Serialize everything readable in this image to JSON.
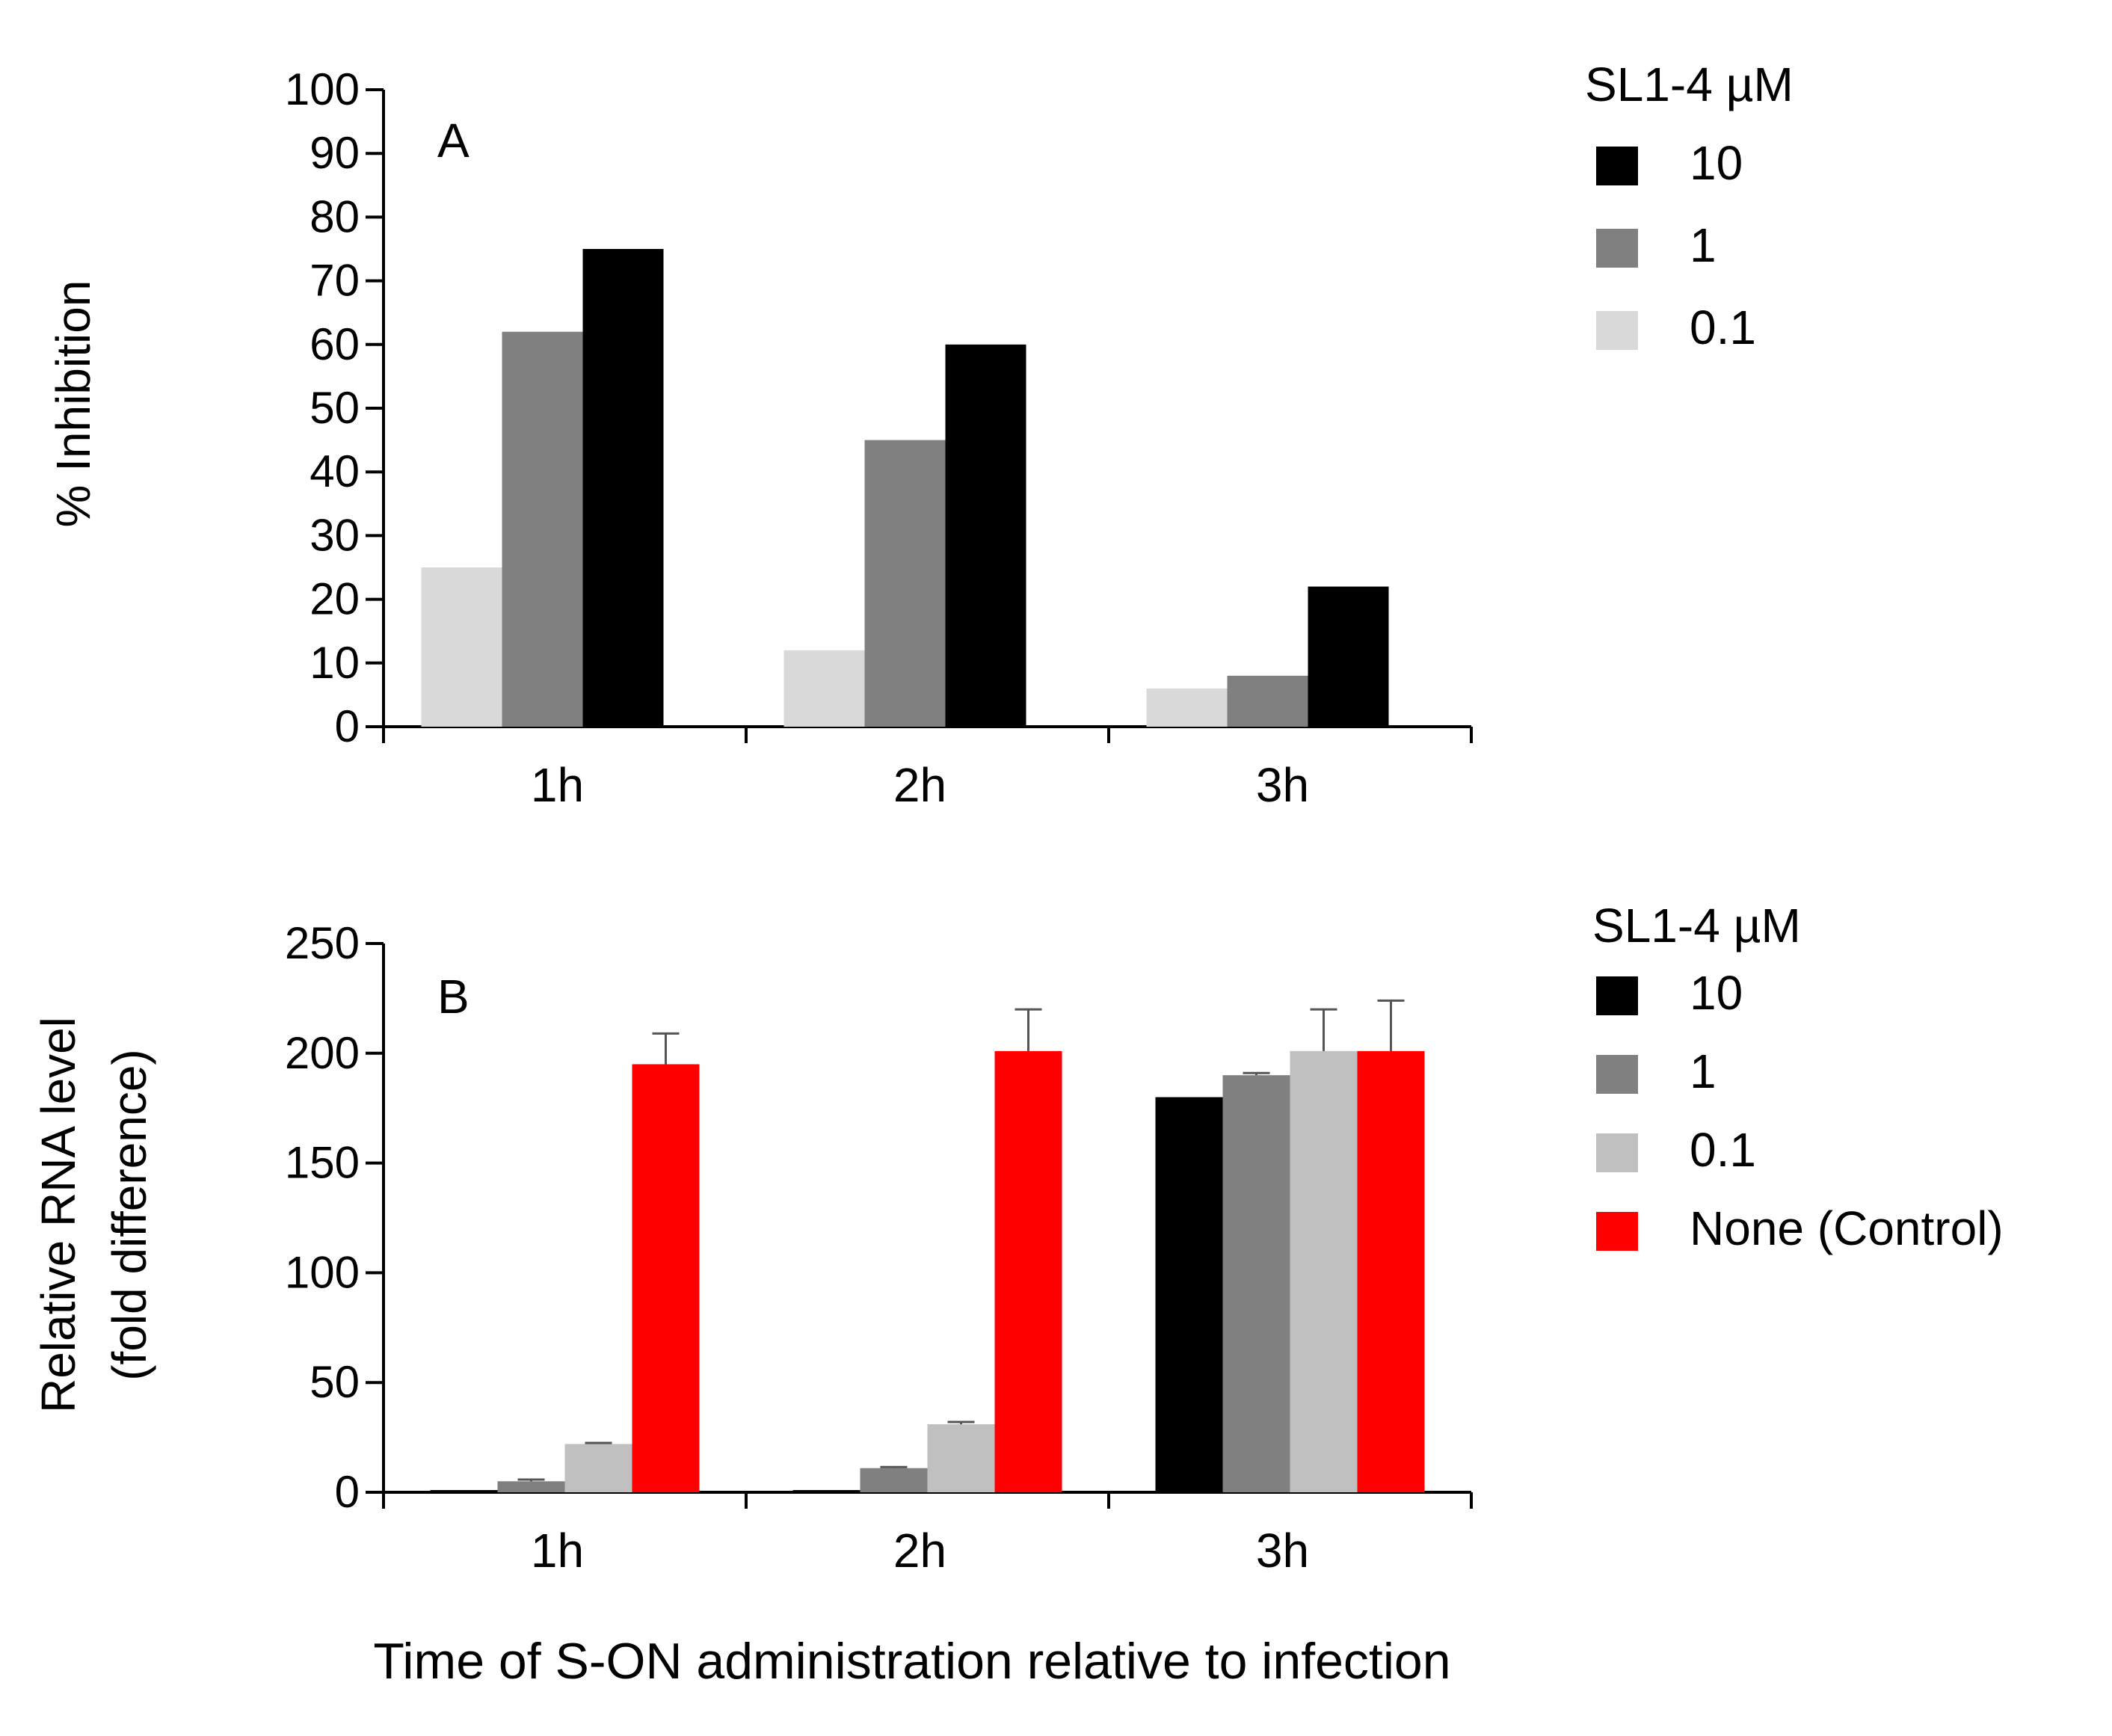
{
  "chart_data": [
    {
      "type": "bar",
      "panel": "A",
      "categories": [
        "1h",
        "2h",
        "3h"
      ],
      "series": [
        {
          "name": "0.1",
          "color": "#d9d9d9",
          "values": [
            25,
            12,
            6
          ]
        },
        {
          "name": "1",
          "color": "#808080",
          "values": [
            62,
            45,
            8
          ]
        },
        {
          "name": "10",
          "color": "#000000",
          "values": [
            75,
            60,
            22
          ]
        }
      ],
      "legend": {
        "title": "SL1-4 µM",
        "entries": [
          "10",
          "1",
          "0.1"
        ],
        "position": "right"
      },
      "ylabel": "% Inhibition",
      "ylim": [
        0,
        100
      ],
      "yticks": [
        0,
        10,
        20,
        30,
        40,
        50,
        60,
        70,
        80,
        90,
        100
      ]
    },
    {
      "type": "bar",
      "panel": "B",
      "categories": [
        "1h",
        "2h",
        "3h"
      ],
      "series": [
        {
          "name": "10",
          "color": "#000000",
          "values": [
            1,
            1,
            180
          ],
          "errors": [
            0,
            0,
            0
          ]
        },
        {
          "name": "1",
          "color": "#808080",
          "values": [
            5,
            11,
            190
          ],
          "errors": [
            0.8,
            0.5,
            1
          ]
        },
        {
          "name": "0.1",
          "color": "#c0c0c0",
          "values": [
            22,
            31,
            201
          ],
          "errors": [
            0.5,
            1,
            19
          ]
        },
        {
          "name": "None (Control)",
          "color": "#ff0000",
          "values": [
            195,
            201,
            201
          ],
          "errors": [
            14,
            19,
            23
          ]
        }
      ],
      "legend": {
        "title": "SL1-4 µM",
        "entries": [
          "10",
          "1",
          "0.1",
          "None (Control)"
        ],
        "position": "right"
      },
      "ylabel": "Relative RNA level",
      "ylabel2": "(fold difference)",
      "ylim": [
        0,
        250
      ],
      "yticks": [
        0,
        50,
        100,
        150,
        200,
        250
      ]
    }
  ],
  "xlabel": "Time of S-ON administration relative to infection"
}
